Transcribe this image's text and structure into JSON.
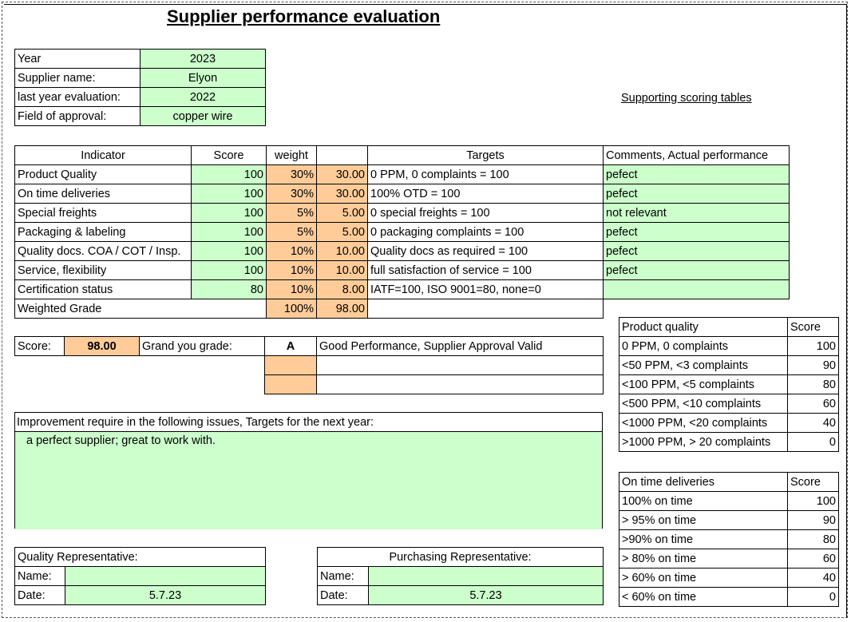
{
  "title": "Supplier performance evaluation",
  "supporting_link": "Supporting scoring tables",
  "info": [
    {
      "label": "Year",
      "value": "2023"
    },
    {
      "label": "Supplier name:",
      "value": "Elyon"
    },
    {
      "label": "last year evaluation:",
      "value": "2022"
    },
    {
      "label": "Field of approval:",
      "value": "copper wire"
    }
  ],
  "indicators": {
    "headers": {
      "indicator": "Indicator",
      "score": "Score",
      "weight": "weight",
      "weighted": "",
      "targets": "Targets",
      "comments": "Comments, Actual performance"
    },
    "rows": [
      {
        "indicator": "Product Quality",
        "score": "100",
        "weight": "30%",
        "weighted": "30.00",
        "targets": "0 PPM, 0 complaints = 100",
        "comments": "pefect"
      },
      {
        "indicator": "On time deliveries",
        "score": "100",
        "weight": "30%",
        "weighted": "30.00",
        "targets": "100% OTD = 100",
        "comments": "pefect"
      },
      {
        "indicator": "Special freights",
        "score": "100",
        "weight": "5%",
        "weighted": "5.00",
        "targets": "0 special freights = 100",
        "comments": "not relevant"
      },
      {
        "indicator": "Packaging & labeling",
        "score": "100",
        "weight": "5%",
        "weighted": "5.00",
        "targets": "0 packaging complaints = 100",
        "comments": "pefect"
      },
      {
        "indicator": "Quality docs. COA / COT / Insp.",
        "score": "100",
        "weight": "10%",
        "weighted": "10.00",
        "targets": "Quality docs as required = 100",
        "comments": "pefect"
      },
      {
        "indicator": "Service, flexibility",
        "score": "100",
        "weight": "10%",
        "weighted": "10.00",
        "targets": "full satisfaction of service = 100",
        "comments": "pefect"
      },
      {
        "indicator": "Certification status",
        "score": "80",
        "weight": "10%",
        "weighted": "8.00",
        "targets": "IATF=100, ISO 9001=80, none=0",
        "comments": ""
      }
    ],
    "total": {
      "label": "Weighted Grade",
      "weight": "100%",
      "weighted": "98.00"
    }
  },
  "grade": {
    "score_label": "Score:",
    "score_value": "98.00",
    "grade_label": "Grand you grade:",
    "grade_value": "A",
    "grade_text": "Good Performance, Supplier Approval Valid"
  },
  "improvement": {
    "header": "Improvement require in the following issues, Targets for the next year:",
    "text": "a perfect supplier; great to work with."
  },
  "quality_rep": {
    "title": "Quality Representative:",
    "name_label": "Name:",
    "name_value": "",
    "date_label": "Date:",
    "date_value": "5.7.23"
  },
  "purchasing_rep": {
    "title": "Purchasing Representative:",
    "name_label": "Name:",
    "name_value": "",
    "date_label": "Date:",
    "date_value": "5.7.23"
  },
  "product_quality_table": {
    "header": "Product quality",
    "score_header": "Score",
    "rows": [
      {
        "label": "0 PPM, 0 complaints",
        "score": "100"
      },
      {
        "label": "<50 PPM, <3 complaints",
        "score": "90"
      },
      {
        "label": "<100 PPM, <5 complaints",
        "score": "80"
      },
      {
        "label": "<500 PPM, <10 complaints",
        "score": "60"
      },
      {
        "label": "<1000 PPM, <20 complaints",
        "score": "40"
      },
      {
        "label": ">1000 PPM, > 20 complaints",
        "score": "0"
      }
    ]
  },
  "delivery_table": {
    "header": "On time deliveries",
    "score_header": "Score",
    "rows": [
      {
        "label": "100% on time",
        "score": "100"
      },
      {
        "label": "> 95% on time",
        "score": "90"
      },
      {
        "label": ">90% on time",
        "score": "80"
      },
      {
        "label": "> 80% on time",
        "score": "60"
      },
      {
        "label": "> 60% on time",
        "score": "40"
      },
      {
        "label": "< 60% on time",
        "score": "0"
      }
    ]
  }
}
